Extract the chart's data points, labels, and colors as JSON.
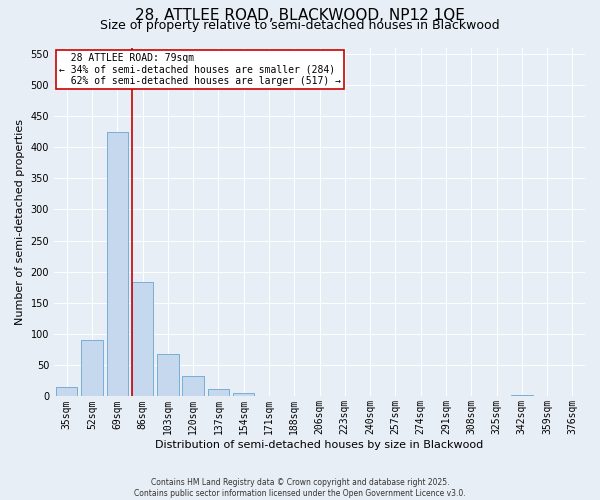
{
  "title_line1": "28, ATTLEE ROAD, BLACKWOOD, NP12 1QE",
  "title_line2": "Size of property relative to semi-detached houses in Blackwood",
  "xlabel": "Distribution of semi-detached houses by size in Blackwood",
  "ylabel": "Number of semi-detached properties",
  "categories": [
    "35sqm",
    "52sqm",
    "69sqm",
    "86sqm",
    "103sqm",
    "120sqm",
    "137sqm",
    "154sqm",
    "171sqm",
    "188sqm",
    "206sqm",
    "223sqm",
    "240sqm",
    "257sqm",
    "274sqm",
    "291sqm",
    "308sqm",
    "325sqm",
    "342sqm",
    "359sqm",
    "376sqm"
  ],
  "values": [
    15,
    90,
    425,
    183,
    68,
    32,
    12,
    5,
    0,
    0,
    0,
    0,
    0,
    0,
    0,
    0,
    0,
    0,
    3,
    0,
    0
  ],
  "bar_color": "#c5d8ee",
  "bar_edge_color": "#7aaed6",
  "red_line_color": "#cc0000",
  "property_label": "28 ATTLEE ROAD: 79sqm",
  "smaller_pct": 34,
  "smaller_count": 284,
  "larger_pct": 62,
  "larger_count": 517,
  "ylim": [
    0,
    560
  ],
  "yticks": [
    0,
    50,
    100,
    150,
    200,
    250,
    300,
    350,
    400,
    450,
    500,
    550
  ],
  "background_color": "#e8eef5",
  "footnote1": "Contains HM Land Registry data © Crown copyright and database right 2025.",
  "footnote2": "Contains public sector information licensed under the Open Government Licence v3.0.",
  "title_fontsize": 11,
  "subtitle_fontsize": 9,
  "axis_label_fontsize": 8,
  "tick_fontsize": 7,
  "annot_fontsize": 7,
  "footnote_fontsize": 5.5
}
